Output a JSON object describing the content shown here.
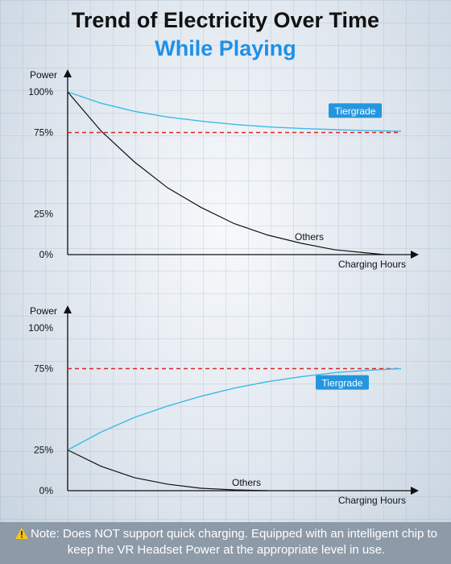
{
  "title": "Trend of Electricity Over Time",
  "subtitle": "While Playing",
  "note": {
    "icon": "warning-icon",
    "text": "Note: Does NOT support quick charging. Equipped with an intelligent chip to keep the VR Headset Power at the appropriate level in use."
  },
  "colors": {
    "subtitle": "#1e90e8",
    "tiergrade": "#3bbbe6",
    "others": "#111111",
    "reference": "#d9252b",
    "label_bg": "#2596de"
  },
  "chart_data": [
    {
      "type": "line",
      "ylabel": "Power",
      "xlabel": "Charging Hours",
      "yticks": [
        "100%",
        "75%",
        "25%",
        "0%"
      ],
      "ylim": [
        0,
        100
      ],
      "xlim": [
        0,
        1
      ],
      "reference_line": 75,
      "series": [
        {
          "name": "Tiergrade",
          "x": [
            0,
            0.1,
            0.2,
            0.3,
            0.4,
            0.5,
            0.6,
            0.7,
            0.8,
            0.9,
            1.0
          ],
          "values": [
            100,
            93,
            88,
            84.5,
            82,
            80,
            78.5,
            77.5,
            76.8,
            76.2,
            75.8
          ]
        },
        {
          "name": "Others",
          "x": [
            0,
            0.1,
            0.2,
            0.3,
            0.4,
            0.5,
            0.6,
            0.7,
            0.8,
            0.9,
            0.95
          ],
          "values": [
            100,
            76,
            57,
            41,
            29,
            19,
            12,
            7,
            3,
            1,
            0
          ]
        }
      ]
    },
    {
      "type": "line",
      "ylabel": "Power",
      "xlabel": "Charging Hours",
      "yticks": [
        "100%",
        "75%",
        "25%",
        "0%"
      ],
      "ylim": [
        0,
        100
      ],
      "xlim": [
        0,
        1
      ],
      "reference_line": 75,
      "series": [
        {
          "name": "Tiergrade",
          "x": [
            0,
            0.1,
            0.2,
            0.3,
            0.4,
            0.5,
            0.6,
            0.7,
            0.8,
            0.9,
            1.0
          ],
          "values": [
            25,
            36,
            45,
            52,
            58,
            63,
            67,
            70,
            72.5,
            74,
            75
          ]
        },
        {
          "name": "Others",
          "x": [
            0,
            0.1,
            0.2,
            0.3,
            0.4,
            0.5,
            0.6
          ],
          "values": [
            25,
            15,
            8,
            4,
            1.5,
            0.5,
            0
          ]
        }
      ]
    }
  ]
}
